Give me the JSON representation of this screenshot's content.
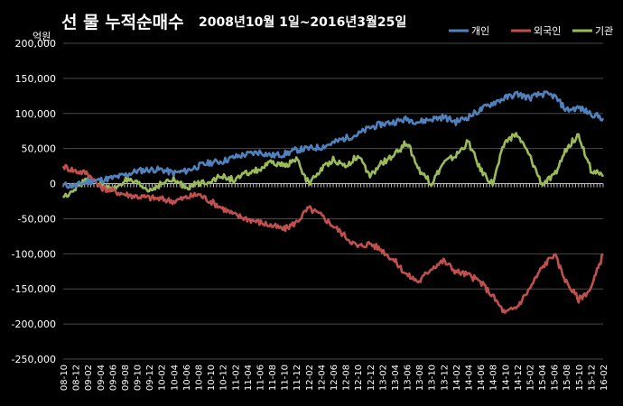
{
  "chart_data": {
    "type": "line",
    "title": "선 물 누적순매수",
    "subtitle": "2008년10월 1일~2016년3월25일",
    "ylabel": "억원",
    "ylim": [
      -250000,
      200000
    ],
    "yticks": [
      200000,
      150000,
      100000,
      50000,
      0,
      -50000,
      -100000,
      -150000,
      -200000,
      -250000
    ],
    "ytick_labels": [
      "200,000",
      "150,000",
      "100,000",
      "50,000",
      "0",
      "-50,000",
      "-100,000",
      "-150,000",
      "-200,000",
      "-250,000"
    ],
    "grid": true,
    "legend_position": "top-right",
    "x": [
      "08-10",
      "08-12",
      "09-02",
      "09-04",
      "09-06",
      "09-08",
      "09-10",
      "09-12",
      "10-02",
      "10-04",
      "10-06",
      "10-08",
      "10-10",
      "10-12",
      "11-02",
      "11-04",
      "11-06",
      "11-08",
      "11-10",
      "11-12",
      "12-02",
      "12-04",
      "12-06",
      "12-08",
      "12-10",
      "12-12",
      "13-02",
      "13-04",
      "13-06",
      "13-08",
      "13-10",
      "13-12",
      "14-02",
      "14-04",
      "14-06",
      "14-08",
      "14-10",
      "14-12",
      "15-02",
      "15-04",
      "15-06",
      "15-08",
      "15-10",
      "15-12",
      "16-02"
    ],
    "series": [
      {
        "name": "개인",
        "color": "#4f81bd",
        "values": [
          -2000,
          -3000,
          3000,
          5000,
          8000,
          12000,
          18000,
          20000,
          20000,
          15000,
          18000,
          25000,
          30000,
          32000,
          38000,
          42000,
          45000,
          40000,
          42000,
          48000,
          50000,
          52000,
          58000,
          65000,
          70000,
          80000,
          85000,
          88000,
          92000,
          88000,
          92000,
          95000,
          88000,
          95000,
          105000,
          115000,
          122000,
          128000,
          122000,
          128000,
          125000,
          105000,
          108000,
          100000,
          93000
        ]
      },
      {
        "name": "외국인",
        "color": "#c0504d",
        "values": [
          25000,
          18000,
          15000,
          -5000,
          -10000,
          -15000,
          -18000,
          -20000,
          -22000,
          -25000,
          -20000,
          -15000,
          -25000,
          -35000,
          -45000,
          -50000,
          -55000,
          -60000,
          -65000,
          -55000,
          -35000,
          -45000,
          -60000,
          -75000,
          -90000,
          -85000,
          -95000,
          -110000,
          -130000,
          -140000,
          -120000,
          -110000,
          -125000,
          -130000,
          -140000,
          -160000,
          -185000,
          -175000,
          -150000,
          -120000,
          -100000,
          -140000,
          -165000,
          -150000,
          -100000
        ]
      },
      {
        "name": "기관",
        "color": "#9bbb59",
        "values": [
          -20000,
          -5000,
          5000,
          0,
          -10000,
          5000,
          0,
          -10000,
          0,
          5000,
          -5000,
          0,
          5000,
          10000,
          5000,
          15000,
          20000,
          30000,
          25000,
          35000,
          0,
          20000,
          35000,
          25000,
          40000,
          10000,
          30000,
          40000,
          60000,
          20000,
          0,
          30000,
          40000,
          60000,
          20000,
          0,
          60000,
          70000,
          40000,
          0,
          10000,
          50000,
          70000,
          20000,
          10000
        ]
      }
    ]
  }
}
